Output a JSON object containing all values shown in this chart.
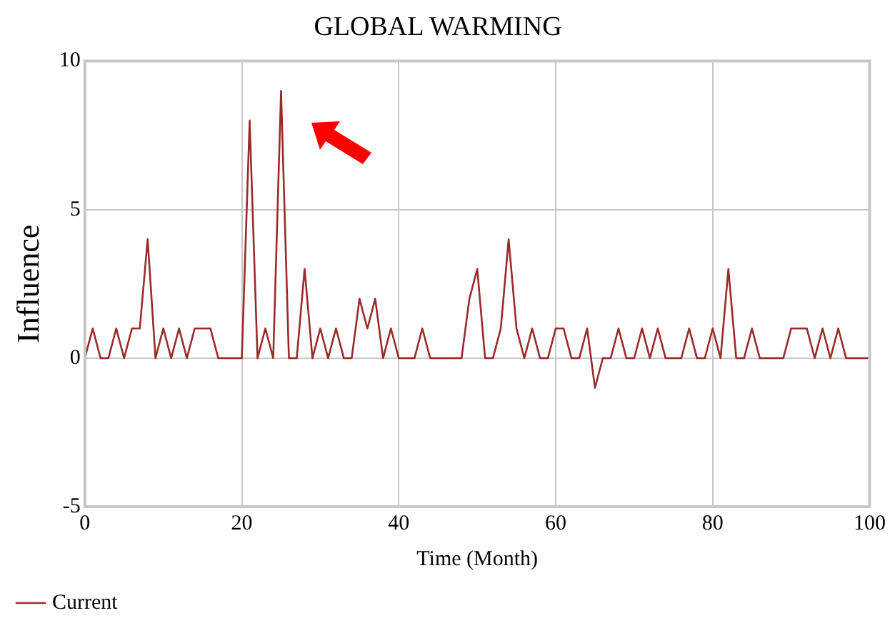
{
  "chart_data": {
    "type": "line",
    "title": "GLOBAL WARMING",
    "xlabel": "Time (Month)",
    "ylabel": "Influence",
    "x": [
      0,
      1,
      2,
      3,
      4,
      5,
      6,
      7,
      8,
      9,
      10,
      11,
      12,
      13,
      14,
      15,
      16,
      17,
      18,
      19,
      20,
      21,
      22,
      23,
      24,
      25,
      26,
      27,
      28,
      29,
      30,
      31,
      32,
      33,
      34,
      35,
      36,
      37,
      38,
      39,
      40,
      41,
      42,
      43,
      44,
      45,
      46,
      47,
      48,
      49,
      50,
      51,
      52,
      53,
      54,
      55,
      56,
      57,
      58,
      59,
      60,
      61,
      62,
      63,
      64,
      65,
      66,
      67,
      68,
      69,
      70,
      71,
      72,
      73,
      74,
      75,
      76,
      77,
      78,
      79,
      80,
      81,
      82,
      83,
      84,
      85,
      86,
      87,
      88,
      89,
      90,
      91,
      92,
      93,
      94,
      95,
      96,
      97,
      98,
      99,
      100
    ],
    "series": [
      {
        "name": "Current",
        "color": "#9b2a2a",
        "values": [
          0,
          1,
          0,
          0,
          1,
          0,
          1,
          1,
          4,
          0,
          1,
          0,
          1,
          0,
          1,
          1,
          1,
          0,
          0,
          0,
          0,
          8,
          0,
          1,
          0,
          9,
          0,
          0,
          3,
          0,
          1,
          0,
          1,
          0,
          0,
          2,
          1,
          2,
          0,
          1,
          0,
          0,
          0,
          1,
          0,
          0,
          0,
          0,
          0,
          2,
          3,
          0,
          0,
          1,
          4,
          1,
          0,
          1,
          0,
          0,
          1,
          1,
          0,
          0,
          1,
          -1,
          0,
          0,
          1,
          0,
          0,
          1,
          0,
          1,
          0,
          0,
          0,
          1,
          0,
          0,
          1,
          0,
          3,
          0,
          0,
          1,
          0,
          0,
          0,
          0,
          1,
          1,
          1,
          0,
          1,
          0,
          1,
          0,
          0,
          0,
          0
        ]
      }
    ],
    "xlim": [
      0,
      100
    ],
    "xticks": [
      0,
      20,
      40,
      60,
      80,
      100
    ],
    "ylim": [
      -5,
      10
    ],
    "yticks": [
      -5,
      0,
      5,
      10
    ],
    "grid": true,
    "legend": "bottom left",
    "marker": "none",
    "line_style": "solid"
  }
}
